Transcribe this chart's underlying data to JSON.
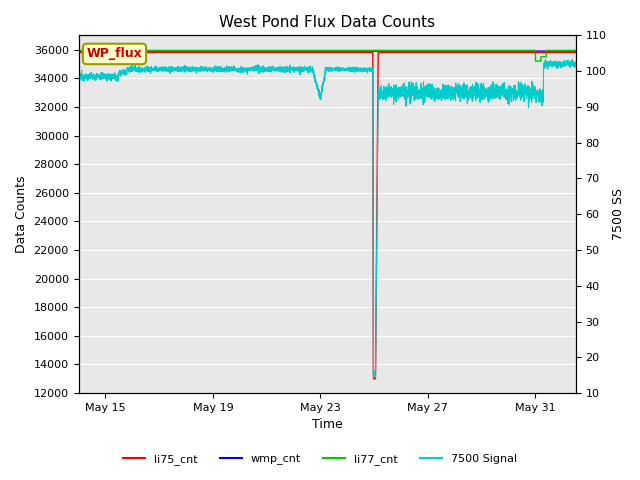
{
  "title": "West Pond Flux Data Counts",
  "xlabel": "Time",
  "ylabel": "Data Counts",
  "ylabel_right": "7500 SS",
  "ylim_left": [
    12000,
    37000
  ],
  "ylim_right": [
    10,
    110
  ],
  "yticks_left": [
    12000,
    14000,
    16000,
    18000,
    20000,
    22000,
    24000,
    26000,
    28000,
    30000,
    32000,
    34000,
    36000
  ],
  "yticks_right": [
    10,
    20,
    30,
    40,
    50,
    60,
    70,
    80,
    90,
    100,
    110
  ],
  "xtick_labels": [
    "May 15",
    "May 19",
    "May 23",
    "May 27",
    "May 31"
  ],
  "xtick_positions": [
    1,
    5,
    9,
    13,
    17
  ],
  "xlim": [
    0,
    18.5
  ],
  "fig_bg_color": "#ffffff",
  "plot_bg_color": "#e8e8e8",
  "grid_color": "#ffffff",
  "annotation_box_text": "WP_flux",
  "annotation_box_color": "#ffffcc",
  "annotation_box_edge": "#999900",
  "title_fontsize": 11,
  "legend_items": [
    "li75_cnt",
    "wmp_cnt",
    "li77_cnt",
    "7500 Signal"
  ],
  "legend_colors": [
    "#ff0000",
    "#0000ff",
    "#00cc00",
    "#00cccc"
  ],
  "axis_label_fontsize": 9,
  "tick_fontsize": 8
}
